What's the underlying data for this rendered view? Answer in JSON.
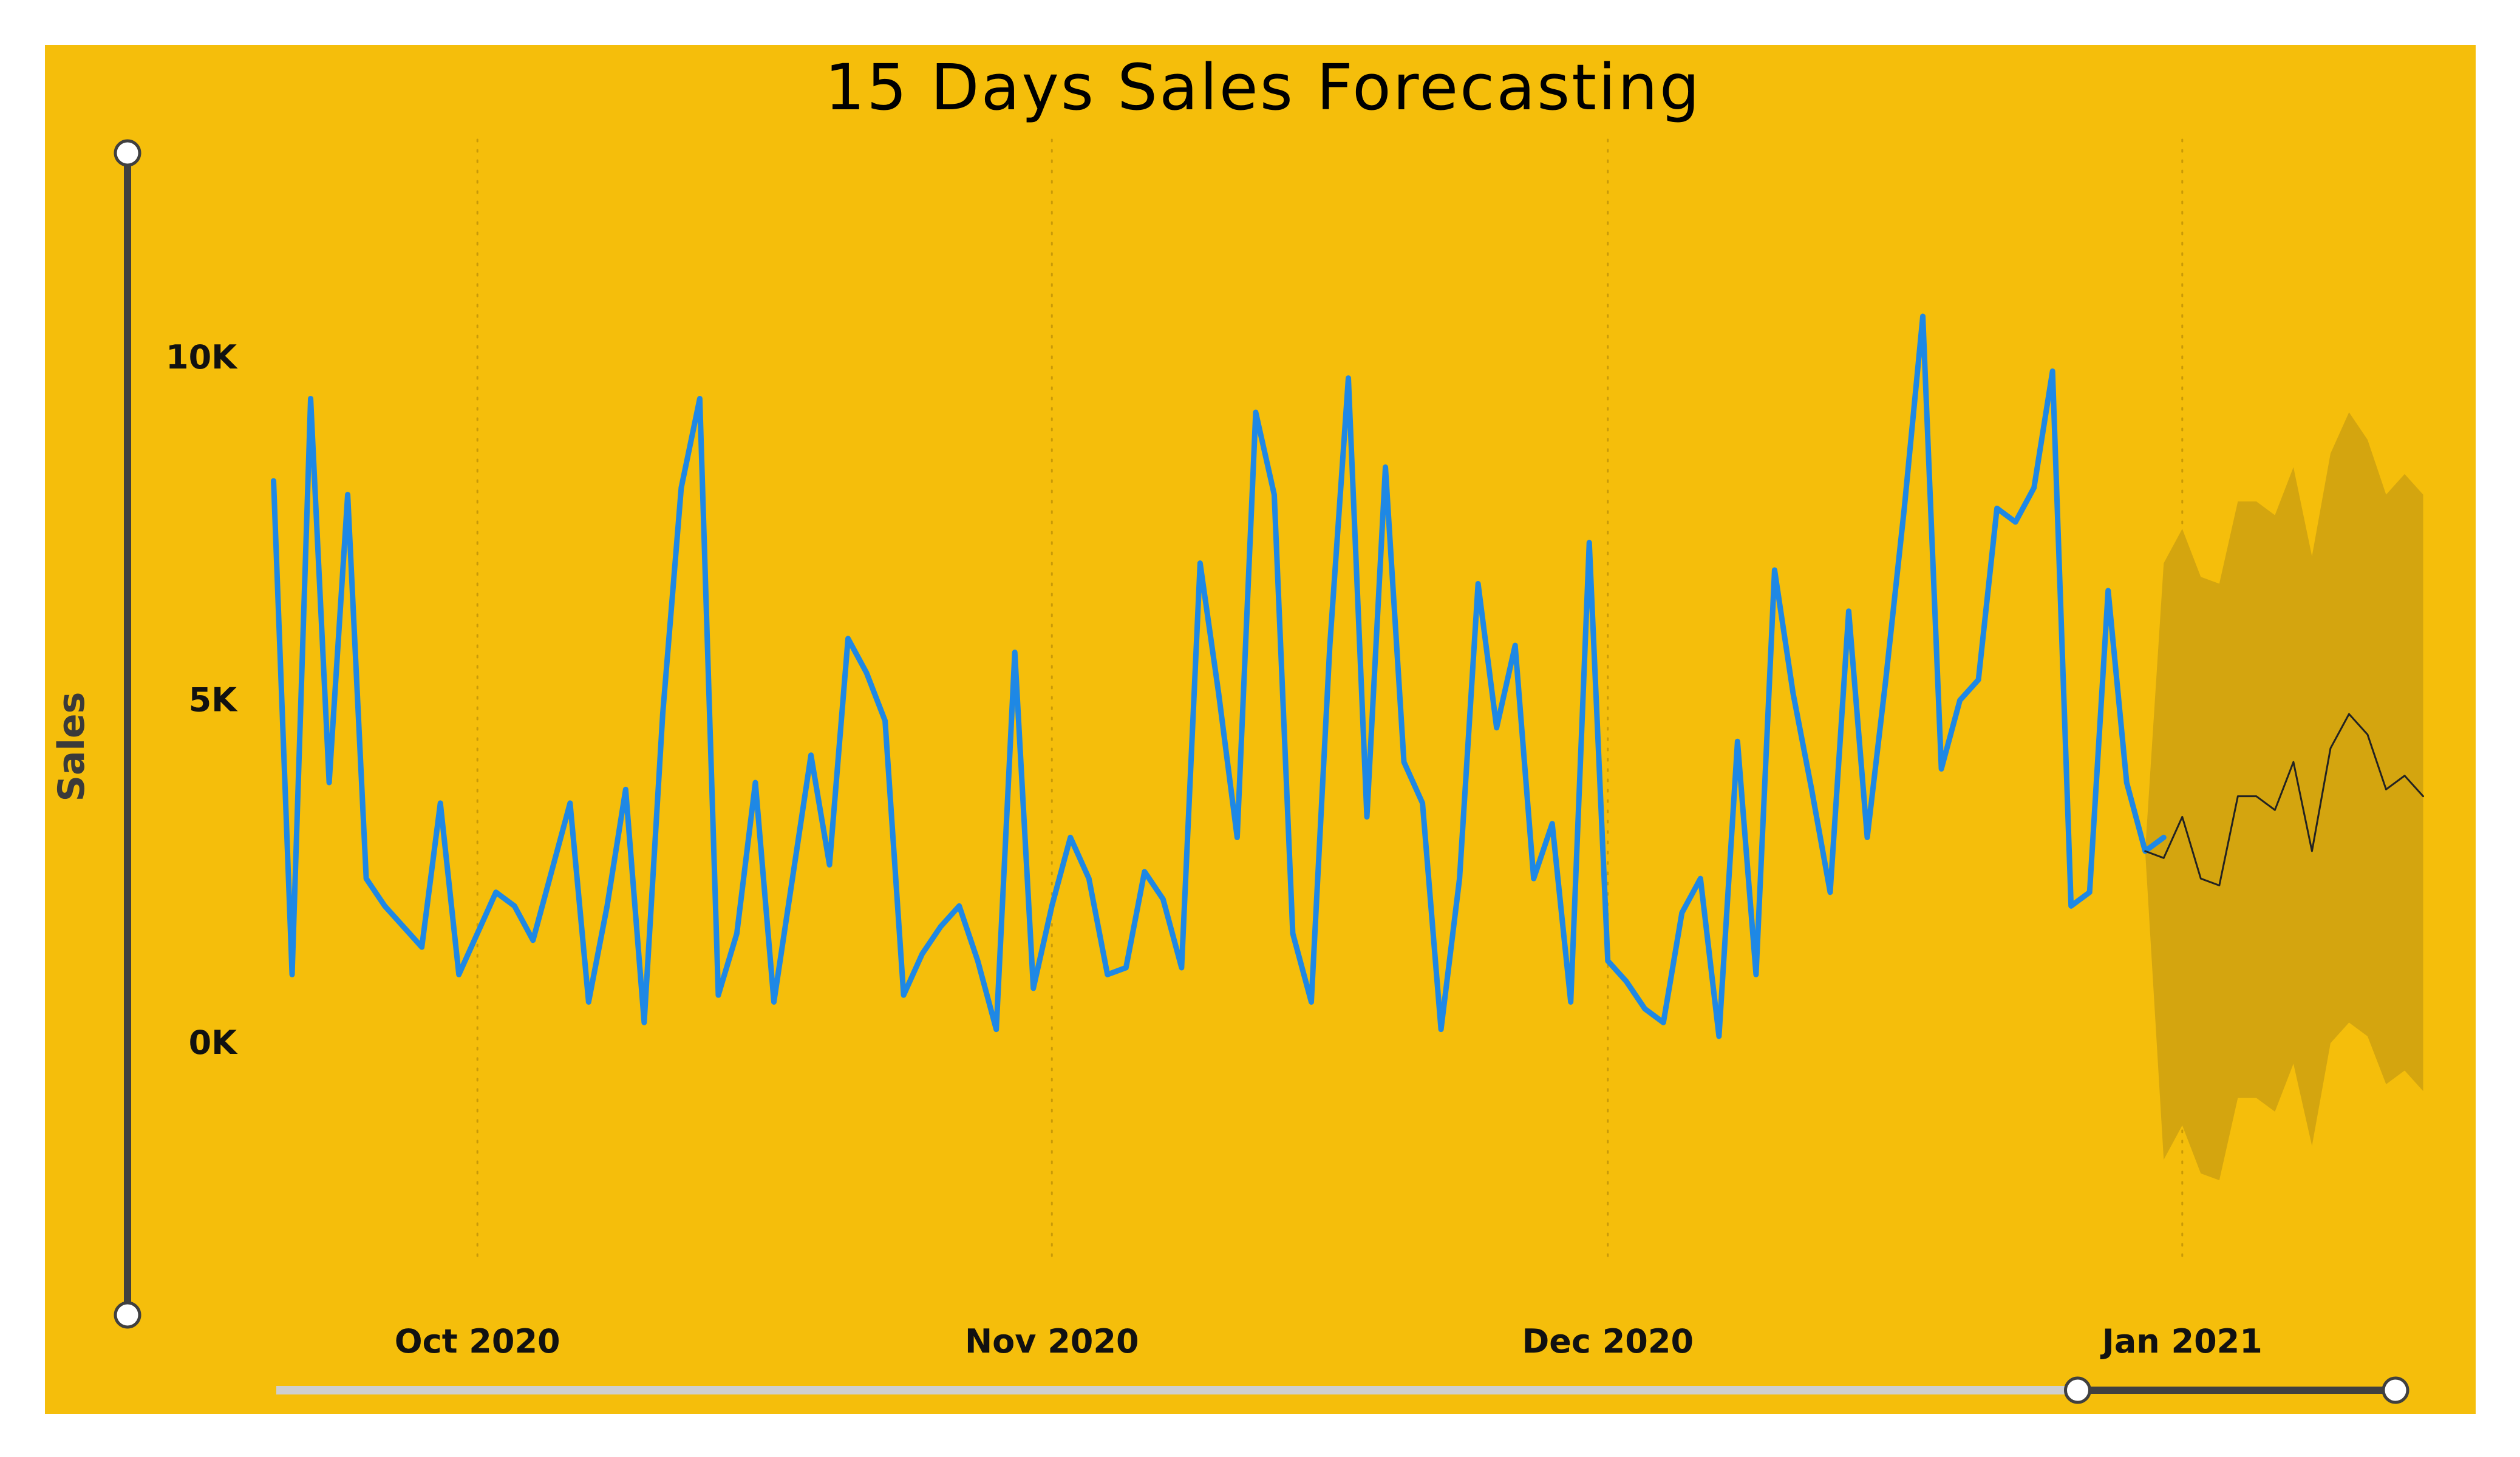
{
  "colors": {
    "background": "#F5BE0B",
    "actual_line": "#1E88E5",
    "forecast_line": "#222222",
    "confidence_band": "#D4A50F",
    "slider_track": "#404040",
    "slider_inactive": "#CFCFCF"
  },
  "chart_data": {
    "type": "line",
    "title": "15 Days Sales Forecasting",
    "ylabel": "Sales",
    "xlabel": "",
    "ylim": [
      -4000,
      13000
    ],
    "y_ticks": [
      {
        "value": 0,
        "label": "0K"
      },
      {
        "value": 5000,
        "label": "5K"
      },
      {
        "value": 10000,
        "label": "10K"
      }
    ],
    "x_ticks": [
      {
        "day": 15,
        "label": "Oct 2020"
      },
      {
        "day": 46,
        "label": "Nov 2020"
      },
      {
        "day": 76,
        "label": "Dec 2020"
      },
      {
        "day": 107,
        "label": "Jan 2021"
      }
    ],
    "xlim": [
      3,
      119
    ],
    "grid": "dotted vertical at month ticks",
    "series": [
      {
        "kind": "actual",
        "start_day": 4,
        "values": [
          8200,
          1000,
          9400,
          3800,
          8000,
          2400,
          2000,
          1700,
          1400,
          3500,
          1000,
          1600,
          2200,
          2000,
          1500,
          2500,
          3500,
          600,
          2000,
          3700,
          300,
          4800,
          8100,
          9400,
          700,
          1600,
          3800,
          600,
          2400,
          4200,
          2600,
          5900,
          5400,
          4700,
          700,
          1300,
          1700,
          2000,
          1200,
          200,
          5700,
          800,
          2000,
          3000,
          2400,
          1000,
          1100,
          2500,
          2100,
          1100,
          7000,
          5100,
          3000,
          9200,
          8000,
          1600,
          600,
          5800,
          9700,
          3300,
          8400,
          4100,
          3500,
          200,
          2400,
          6700,
          4600,
          5800,
          2400,
          3200,
          600,
          7300,
          1200,
          900,
          500,
          300,
          1900,
          2400,
          100,
          4400,
          1000,
          6900,
          5100,
          3700,
          2200,
          6300,
          3000,
          5300,
          7800,
          10600,
          4000,
          5000,
          5300,
          7800,
          7600,
          8100,
          9800,
          2000,
          2200,
          6600,
          3800,
          2800,
          3000
        ]
      },
      {
        "kind": "forecast",
        "start_day": 105,
        "values": [
          2800,
          2700,
          3300,
          2400,
          2300,
          3600,
          3600,
          3400,
          4100,
          2800,
          4300,
          4800,
          4500,
          3700,
          3900,
          3600
        ]
      },
      {
        "kind": "confidence_band",
        "start_day": 105,
        "upper": [
          2800,
          7000,
          7500,
          6800,
          6700,
          7900,
          7900,
          7700,
          8400,
          7100,
          8600,
          9200,
          8800,
          8000,
          8300,
          8000
        ],
        "lower": [
          2800,
          -1700,
          -1200,
          -1900,
          -2000,
          -800,
          -800,
          -1000,
          -300,
          -1500,
          0,
          300,
          100,
          -600,
          -400,
          -700
        ]
      }
    ]
  },
  "slider_x": {
    "start_fraction": 0.0,
    "end_fraction": 0.85
  }
}
